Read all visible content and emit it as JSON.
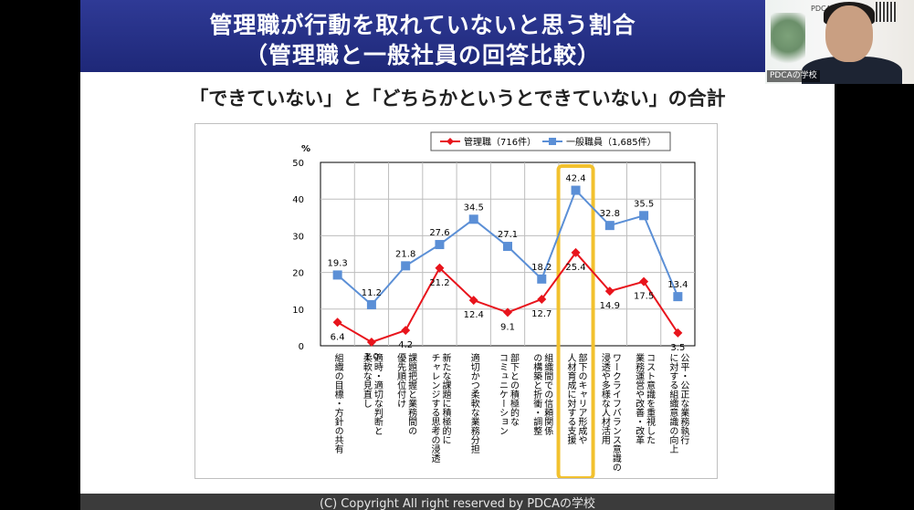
{
  "slide": {
    "title_line1": "管理職が行動を取れていないと思う割合",
    "title_line2": "（管理職と一般社員の回答比較）",
    "subtitle": "「できていない」と「どちらかというとできていない」の合計",
    "footer": "(C) Copyright All right reserved by PDCAの学校"
  },
  "webcam": {
    "logo_text": "PDCAの学校",
    "name_label": "PDCAの学校"
  },
  "chart_data": {
    "type": "line",
    "ylabel": "%",
    "ylim": [
      0,
      50
    ],
    "yticks": [
      0,
      10,
      20,
      30,
      40,
      50
    ],
    "grid": true,
    "legend_position": "top",
    "categories": [
      "組織の目標・方針の共有",
      "適時・適切な判断と柔軟な見直し",
      "課題把握と業務間の優先順位付け",
      "新たな課題に積極的にチャレンジする思考の浸透",
      "適切かつ柔軟な業務分担",
      "部下との積極的なコミュニケーション",
      "組織間での信頼関係の構築と折衝・調整",
      "部下のキャリア形成や人材育成に対する支援",
      "ワークライフバランス意識の浸透や多様な人材活用",
      "コスト意識を重視した業務運営や改善・改革",
      "公平・公正な業務執行に対する組織意識の向上"
    ],
    "category_lines": [
      [
        "組織の目標・方針の共有"
      ],
      [
        "適時・適切な判断と",
        "柔軟な見直し"
      ],
      [
        "課題把握と業務間の",
        "優先順位付け"
      ],
      [
        "新たな課題に積極的に",
        "チャレンジする思考の浸透"
      ],
      [
        "適切かつ柔軟な業務分担"
      ],
      [
        "部下との積極的な",
        "コミュニケーション"
      ],
      [
        "組織間での信頼関係",
        "の構築と折衝・調整"
      ],
      [
        "部下のキャリア形成や",
        "人材育成に対する支援"
      ],
      [
        "ワークライフバランス意識の",
        "浸透や多様な人材活用"
      ],
      [
        "コスト意識を重視した",
        "業務運営や改善・改革"
      ],
      [
        "公平・公正な業務執行",
        "に対する組織意識の向上"
      ]
    ],
    "series": [
      {
        "name": "管理職（716件）",
        "color": "#e8141c",
        "marker": "diamond",
        "values": [
          6.4,
          1.0,
          4.2,
          21.2,
          12.4,
          9.1,
          12.7,
          25.4,
          14.9,
          17.5,
          3.5
        ],
        "labels": [
          "6.4",
          "1.0",
          "4.2",
          "21.2",
          "12.4",
          "9.1",
          "12.7",
          "25.4",
          "14.9",
          "17.5",
          "3.5"
        ]
      },
      {
        "name": "一般職員（1,685件）",
        "color": "#5b8fd6",
        "marker": "square",
        "values": [
          19.3,
          11.2,
          21.8,
          27.6,
          34.5,
          27.1,
          18.2,
          42.4,
          32.8,
          35.5,
          13.4
        ],
        "labels": [
          "19.3",
          "11.2",
          "21.8",
          "27.6",
          "34.5",
          "27.1",
          "18.2",
          "42.4",
          "32.8",
          "35.5",
          "13.4"
        ]
      }
    ],
    "highlight": {
      "category_index": 7,
      "color": "#f2c12e"
    }
  }
}
